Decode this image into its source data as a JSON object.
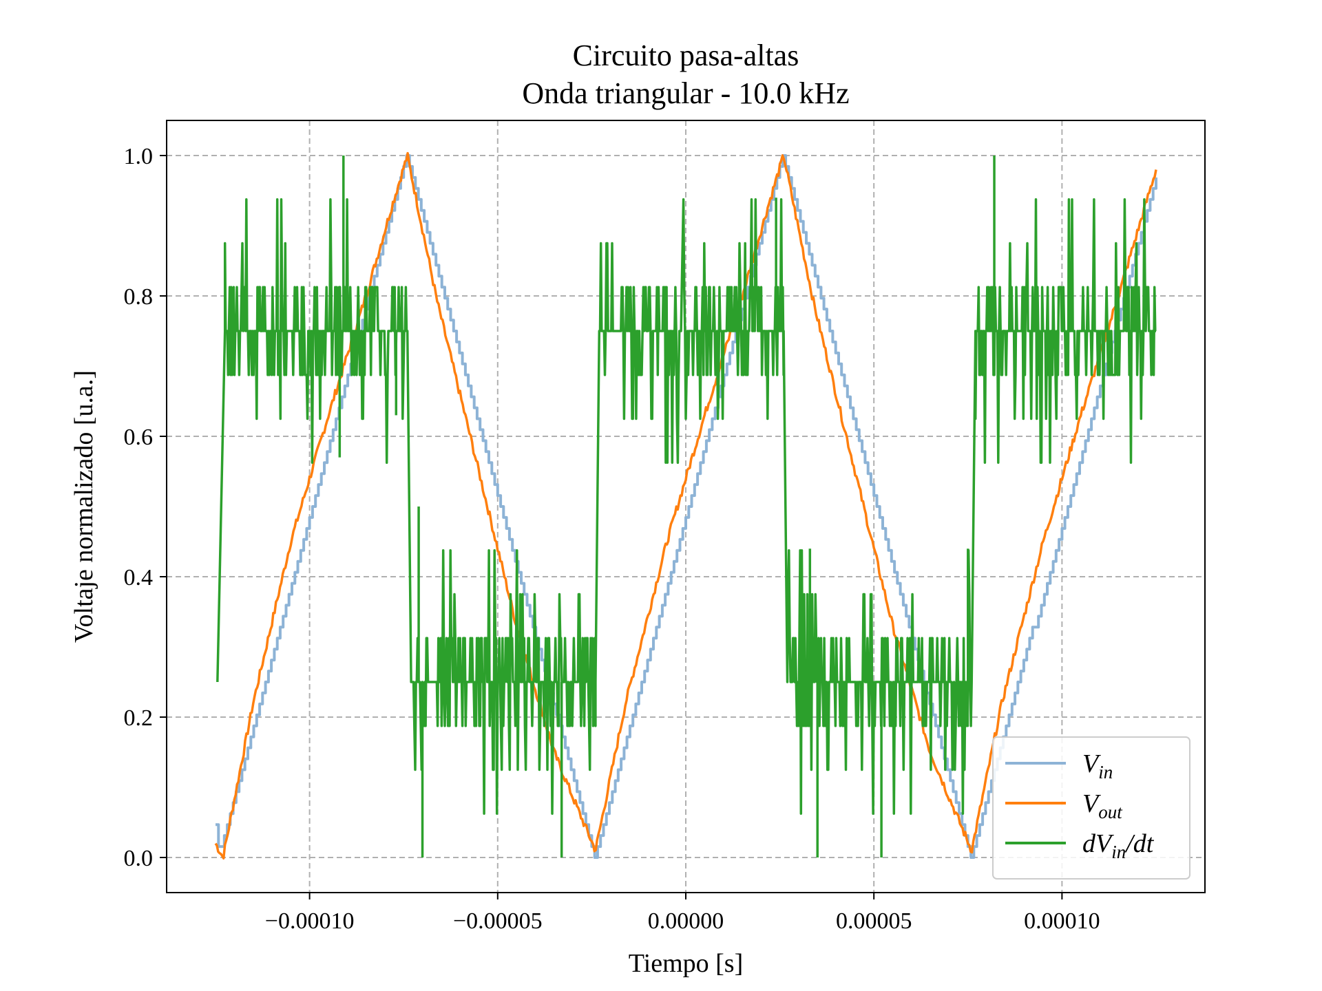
{
  "colors": {
    "vin": "#8db3d6",
    "vout": "#ff7f0e",
    "dvin": "#2ca02c",
    "grid": "#b0b0b0",
    "axes": "#000000"
  },
  "chart_data": {
    "type": "line",
    "title": "Circuito pasa-altas",
    "subtitle": "Onda triangular - 10.0 kHz",
    "xlabel": "Tiempo [s]",
    "ylabel": "Voltaje normalizado [u.a.]",
    "xlim": [
      -0.000138,
      0.000138
    ],
    "ylim": [
      -0.05,
      1.05
    ],
    "xticks": [
      -0.0001,
      -5e-05,
      0.0,
      5e-05,
      0.0001
    ],
    "xtick_labels": [
      "−0.00010",
      "−0.00005",
      "0.00000",
      "0.00005",
      "0.00010"
    ],
    "yticks": [
      0.0,
      0.2,
      0.4,
      0.6,
      0.8,
      1.0
    ],
    "ytick_labels": [
      "0.0",
      "0.2",
      "0.4",
      "0.6",
      "0.8",
      "1.0"
    ],
    "grid": true,
    "grid_style": "dashed",
    "legend_position": "lower right",
    "series": [
      {
        "name": "V_in",
        "label": "V",
        "label_sub": "in",
        "color": "#8db3d6",
        "style": "staircase",
        "x": [
          -0.000125,
          -0.000124,
          -7.4e-05,
          -2.4e-05,
          2.6e-05,
          7.6e-05,
          0.000125
        ],
        "y": [
          0.04,
          0.0,
          1.0,
          0.0,
          1.0,
          0.0,
          0.97
        ]
      },
      {
        "name": "V_out",
        "label": "V",
        "label_sub": "out",
        "color": "#ff7f0e",
        "style": "line",
        "x": [
          -0.000125,
          -0.000123,
          -0.000115,
          -0.000105,
          -9.5e-05,
          -8.5e-05,
          -7.8e-05,
          -7.4e-05,
          -6.6e-05,
          -5.5e-05,
          -4.5e-05,
          -3.5e-05,
          -2.8e-05,
          -2.4e-05,
          -1.6e-05,
          -5e-06,
          5e-06,
          1.5e-05,
          2.2e-05,
          2.6e-05,
          3.4e-05,
          4.5e-05,
          5.5e-05,
          6.5e-05,
          7.2e-05,
          7.6e-05,
          8.4e-05,
          9.5e-05,
          0.000105,
          0.000115,
          0.000125
        ],
        "y": [
          0.02,
          0.0,
          0.22,
          0.45,
          0.63,
          0.8,
          0.93,
          1.0,
          0.79,
          0.55,
          0.33,
          0.15,
          0.06,
          0.01,
          0.22,
          0.45,
          0.63,
          0.8,
          0.93,
          1.0,
          0.79,
          0.55,
          0.33,
          0.15,
          0.06,
          0.01,
          0.22,
          0.45,
          0.63,
          0.8,
          0.98
        ]
      },
      {
        "name": "dV_in/dt",
        "label": "dV",
        "label_sub": "in",
        "label_suffix": "/dt",
        "color": "#2ca02c",
        "style": "noisy-square",
        "segments": [
          {
            "x0": -0.0001245,
            "x1": -0.0001225,
            "y0": 0.25,
            "y1": 0.75
          },
          {
            "x0": -0.0001225,
            "x1": -7.4e-05,
            "level": 0.75
          },
          {
            "x0": -7.4e-05,
            "x1": -7.3e-05,
            "y0": 0.75,
            "y1": 0.25
          },
          {
            "x0": -7.3e-05,
            "x1": -2.4e-05,
            "level": 0.25
          },
          {
            "x0": -2.4e-05,
            "x1": -2.3e-05,
            "y0": 0.25,
            "y1": 0.75
          },
          {
            "x0": -2.3e-05,
            "x1": 2.6e-05,
            "level": 0.75
          },
          {
            "x0": 2.6e-05,
            "x1": 2.7e-05,
            "y0": 0.75,
            "y1": 0.25
          },
          {
            "x0": 2.7e-05,
            "x1": 7.6e-05,
            "level": 0.25
          },
          {
            "x0": 7.6e-05,
            "x1": 7.7e-05,
            "y0": 0.25,
            "y1": 0.75
          },
          {
            "x0": 7.7e-05,
            "x1": 0.000125,
            "level": 0.75
          }
        ],
        "noise_values": [
          0.0625,
          0.125,
          0.1875
        ],
        "spikes": [
          {
            "x": -9.1e-05,
            "y": 1.0
          },
          {
            "x": -9.2e-05,
            "y": 0.57
          },
          {
            "x": -7.1e-05,
            "y": 0.5
          },
          {
            "x": -7e-05,
            "y": 0.0
          },
          {
            "x": -3.3e-05,
            "y": 0.0
          },
          {
            "x": -7.7e-05,
            "y": 0.63
          },
          {
            "x": 3.5e-05,
            "y": 0.0
          },
          {
            "x": 5.2e-05,
            "y": 0.0
          },
          {
            "x": 7.5e-05,
            "y": 0.44
          },
          {
            "x": 8.2e-05,
            "y": 1.0
          },
          {
            "x": 3.3e-05,
            "y": 0.44
          },
          {
            "x": 2.4e-05,
            "y": 0.94
          }
        ]
      }
    ]
  }
}
